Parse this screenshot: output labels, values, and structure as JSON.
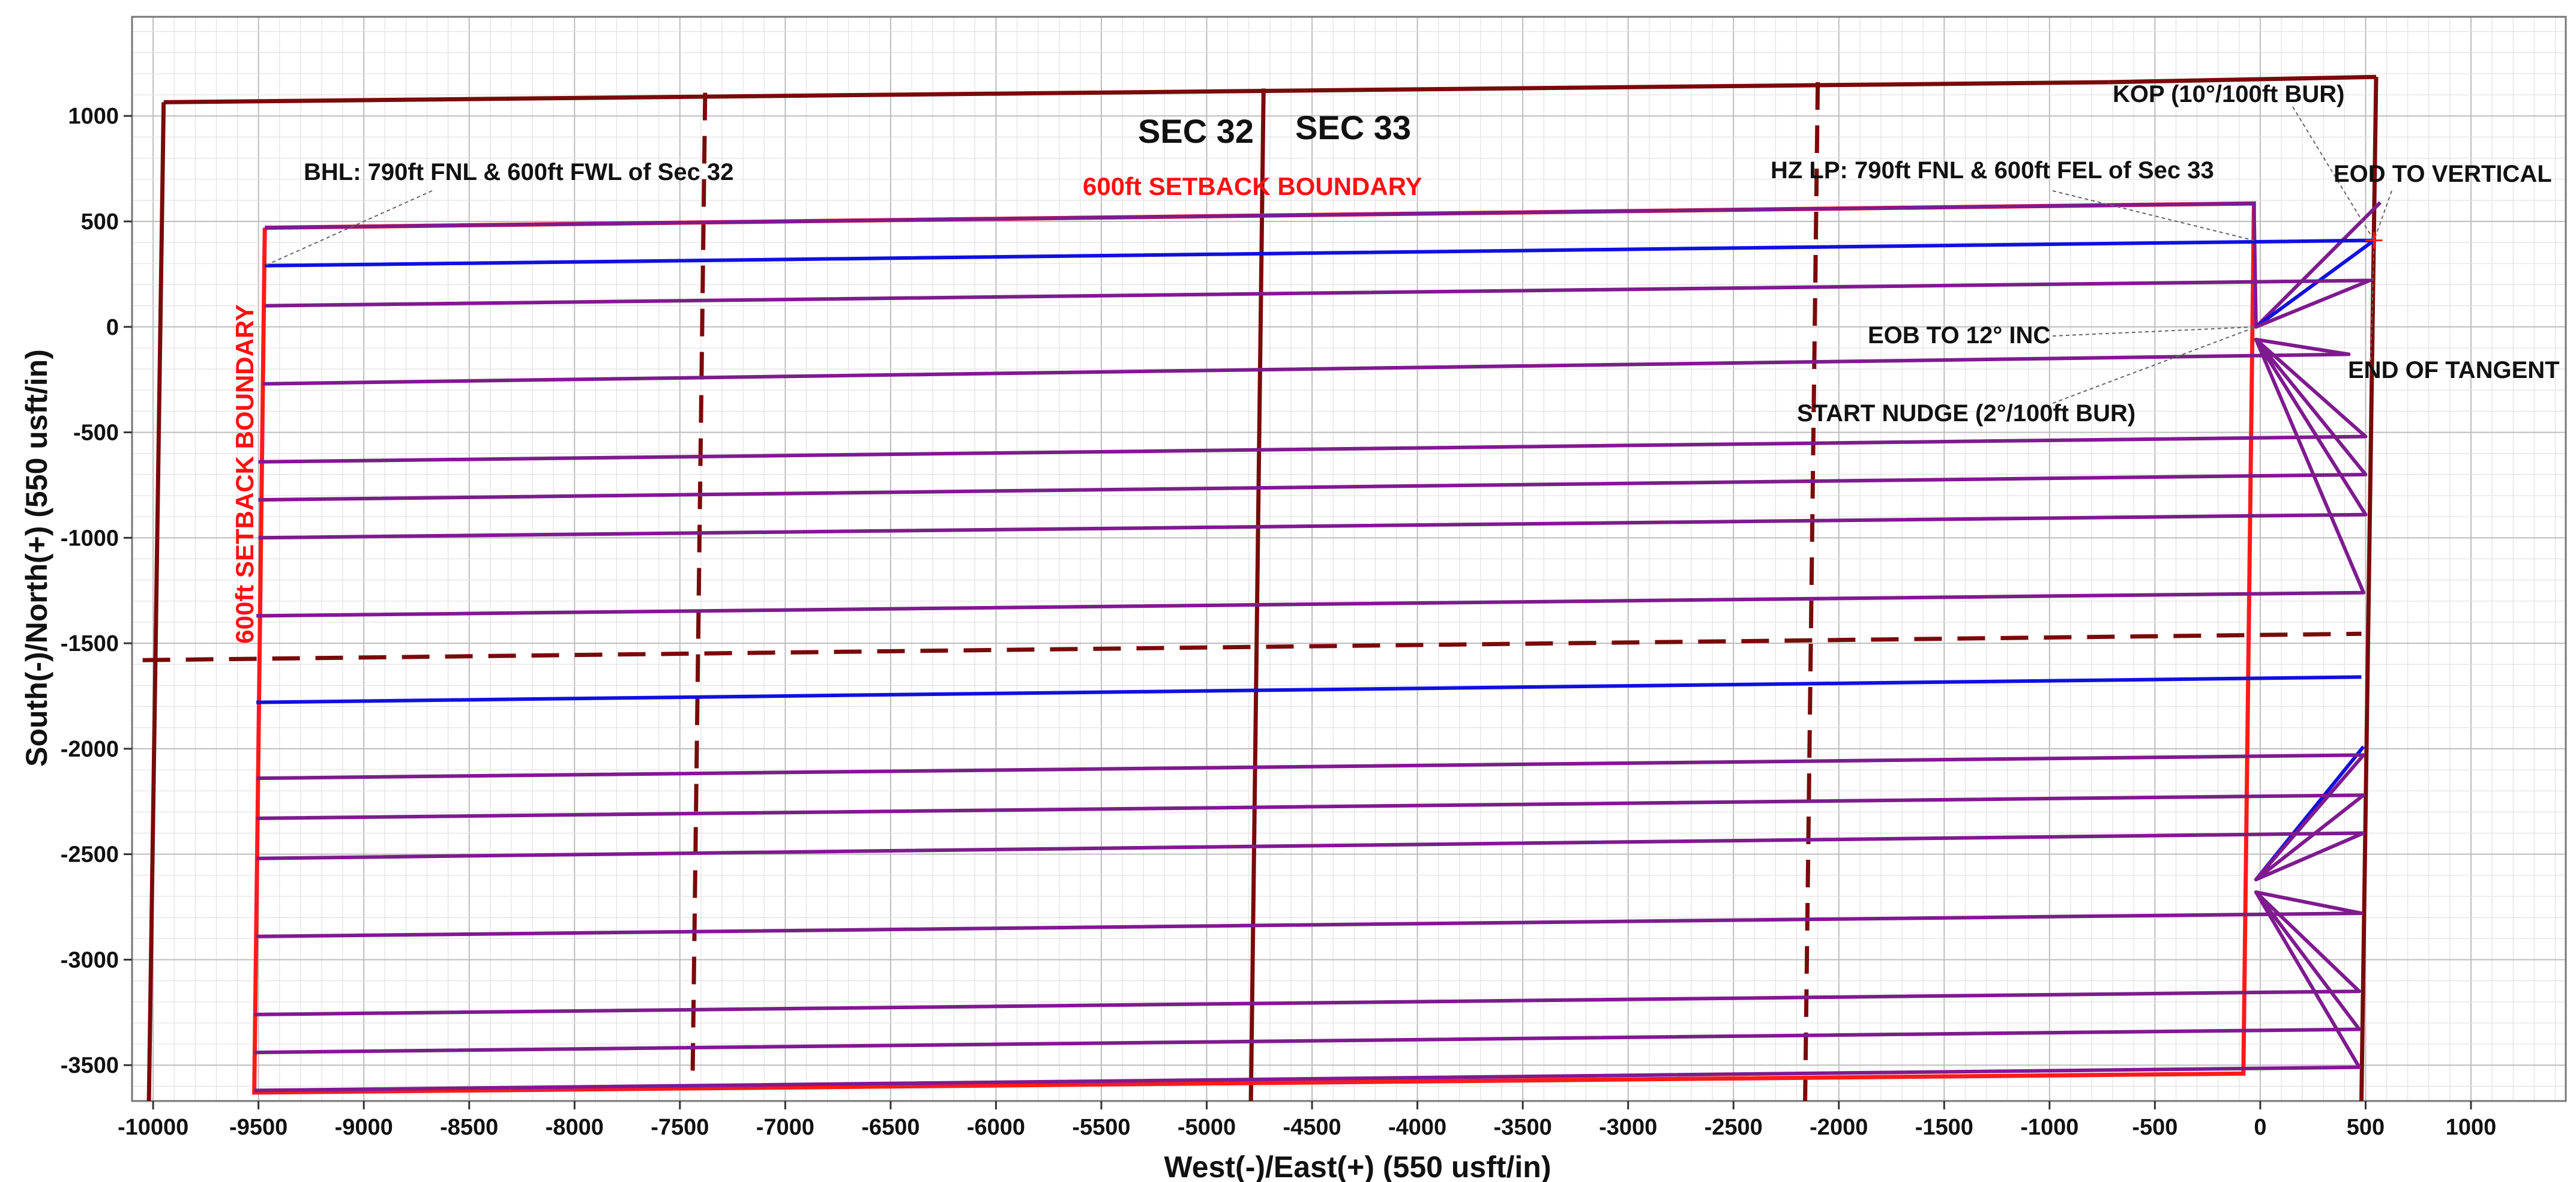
{
  "chart_data": {
    "type": "line",
    "xlabel": "West(-)/East(+) (550 usft/in)",
    "ylabel": "South(-)/North(+) (550 usft/in)",
    "xlim": [
      -10100,
      1450
    ],
    "ylim": [
      -3670,
      1470
    ],
    "x_ticks": [
      -10000,
      -9500,
      -9000,
      -8500,
      -8000,
      -7500,
      -7000,
      -6500,
      -6000,
      -5500,
      -5000,
      -4500,
      -4000,
      -3500,
      -3000,
      -2500,
      -2000,
      -1500,
      -1000,
      -500,
      0,
      500,
      1000
    ],
    "y_ticks": [
      1000,
      500,
      0,
      -500,
      -1000,
      -1500,
      -2000,
      -2500,
      -3000,
      -3500
    ],
    "grid": true,
    "colors": {
      "section_lines": "#7a0a0a",
      "setback": "#ff1a1a",
      "wells_purple": "#7f1a8f",
      "wells_blue": "#1010e0",
      "grid_minor": "#e2e2e2",
      "grid_major": "#bdbdbd"
    },
    "section_lines": [
      {
        "name": "sec-north-line",
        "style": "solid",
        "points": [
          [
            -9950,
            1065
          ],
          [
            -720,
            1160
          ]
        ]
      },
      {
        "name": "sec-north-line-east",
        "style": "solid",
        "points": [
          [
            -720,
            1160
          ],
          [
            550,
            1185
          ]
        ]
      },
      {
        "name": "sec-east-line",
        "style": "solid",
        "points": [
          [
            550,
            1185
          ],
          [
            480,
            -3670
          ]
        ]
      },
      {
        "name": "sec-west-line",
        "style": "solid",
        "points": [
          [
            -9950,
            1065
          ],
          [
            -10020,
            -3670
          ]
        ]
      },
      {
        "name": "sec32-33-line",
        "style": "solid",
        "points": [
          [
            -4730,
            1130
          ],
          [
            -4790,
            -3670
          ]
        ]
      },
      {
        "name": "qtr-line-west",
        "style": "dashed",
        "points": [
          [
            -7380,
            1110
          ],
          [
            -7440,
            -3580
          ]
        ]
      },
      {
        "name": "qtr-line-east",
        "style": "dashed",
        "points": [
          [
            -2100,
            1160
          ],
          [
            -2160,
            -3670
          ]
        ]
      },
      {
        "name": "half-section-line",
        "style": "dashed",
        "points": [
          [
            -10050,
            -1580
          ],
          [
            480,
            -1455
          ]
        ]
      }
    ],
    "setback_boundary": [
      [
        -9470,
        470
      ],
      [
        -30,
        585
      ],
      [
        -80,
        -3540
      ],
      [
        -9520,
        -3630
      ],
      [
        -9470,
        470
      ]
    ],
    "series": [
      {
        "color": "purple",
        "points": [
          [
            570,
            590
          ],
          [
            -20,
            0
          ],
          [
            -30,
            585
          ],
          [
            -9470,
            470
          ]
        ]
      },
      {
        "color": "blue",
        "points": [
          [
            540,
            410
          ],
          [
            -20,
            0
          ],
          [
            540,
            410
          ],
          [
            -9470,
            290
          ]
        ]
      },
      {
        "color": "purple",
        "points": [
          [
            520,
            220
          ],
          [
            -20,
            0
          ],
          [
            520,
            220
          ],
          [
            -9470,
            100
          ]
        ]
      },
      {
        "color": "purple",
        "points": [
          [
            420,
            -130
          ],
          [
            -20,
            -60
          ],
          [
            420,
            -130
          ],
          [
            -9480,
            -270
          ]
        ]
      },
      {
        "color": "purple",
        "points": [
          [
            500,
            -520
          ],
          [
            -20,
            -60
          ],
          [
            500,
            -520
          ],
          [
            -9500,
            -640
          ]
        ]
      },
      {
        "color": "purple",
        "points": [
          [
            500,
            -700
          ],
          [
            -20,
            -60
          ],
          [
            500,
            -700
          ],
          [
            -9500,
            -820
          ]
        ]
      },
      {
        "color": "purple",
        "points": [
          [
            500,
            -890
          ],
          [
            -20,
            -60
          ],
          [
            500,
            -890
          ],
          [
            -9500,
            -1000
          ]
        ]
      },
      {
        "color": "purple",
        "points": [
          [
            490,
            -1260
          ],
          [
            -20,
            -60
          ],
          [
            490,
            -1260
          ],
          [
            -9510,
            -1370
          ]
        ]
      },
      {
        "color": "blue",
        "points": [
          [
            480,
            -1660
          ],
          [
            -9510,
            -1780
          ]
        ]
      },
      {
        "color": "blue",
        "points": [
          [
            490,
            -1990
          ],
          [
            -20,
            -2620
          ],
          [
            490,
            -1990
          ]
        ]
      },
      {
        "color": "purple",
        "points": [
          [
            490,
            -2030
          ],
          [
            -20,
            -2620
          ],
          [
            490,
            -2030
          ],
          [
            -9510,
            -2140
          ]
        ]
      },
      {
        "color": "purple",
        "points": [
          [
            490,
            -2220
          ],
          [
            -20,
            -2620
          ],
          [
            490,
            -2220
          ],
          [
            -9510,
            -2330
          ]
        ]
      },
      {
        "color": "purple",
        "points": [
          [
            490,
            -2400
          ],
          [
            -20,
            -2620
          ],
          [
            490,
            -2400
          ],
          [
            -9510,
            -2520
          ]
        ]
      },
      {
        "color": "purple",
        "points": [
          [
            480,
            -2780
          ],
          [
            -20,
            -2680
          ],
          [
            480,
            -2780
          ],
          [
            -9510,
            -2890
          ]
        ]
      },
      {
        "color": "purple",
        "points": [
          [
            470,
            -3150
          ],
          [
            -20,
            -2680
          ],
          [
            470,
            -3150
          ],
          [
            -9520,
            -3260
          ]
        ]
      },
      {
        "color": "purple",
        "points": [
          [
            470,
            -3330
          ],
          [
            -20,
            -2680
          ],
          [
            470,
            -3330
          ],
          [
            -9520,
            -3440
          ]
        ]
      },
      {
        "color": "purple",
        "points": [
          [
            470,
            -3510
          ],
          [
            -20,
            -2680
          ],
          [
            470,
            -3510
          ],
          [
            -9520,
            -3620
          ]
        ]
      }
    ],
    "labels": {
      "sec32": "SEC 32",
      "sec33": "SEC 33",
      "setback_top": "600ft SETBACK BOUNDARY",
      "setback_left": "600ft SETBACK BOUNDARY"
    },
    "annotations": [
      {
        "text": "BHL: 790ft FNL & 600ft FWL of Sec 32",
        "x": -9470,
        "y": 290
      },
      {
        "text": "HZ LP: 790ft FNL & 600ft FEL of Sec 33",
        "x": -30,
        "y": 410
      },
      {
        "text": "KOP (10°/100ft BUR)",
        "x": 540,
        "y": 410
      },
      {
        "text": "EOD TO VERTICAL",
        "x": 540,
        "y": 410
      },
      {
        "text": "EOB TO 12° INC",
        "x": -20,
        "y": 0
      },
      {
        "text": "END OF TANGENT",
        "x": 540,
        "y": 410
      },
      {
        "text": "START NUDGE (2°/100ft BUR)",
        "x": -20,
        "y": 0
      }
    ]
  }
}
